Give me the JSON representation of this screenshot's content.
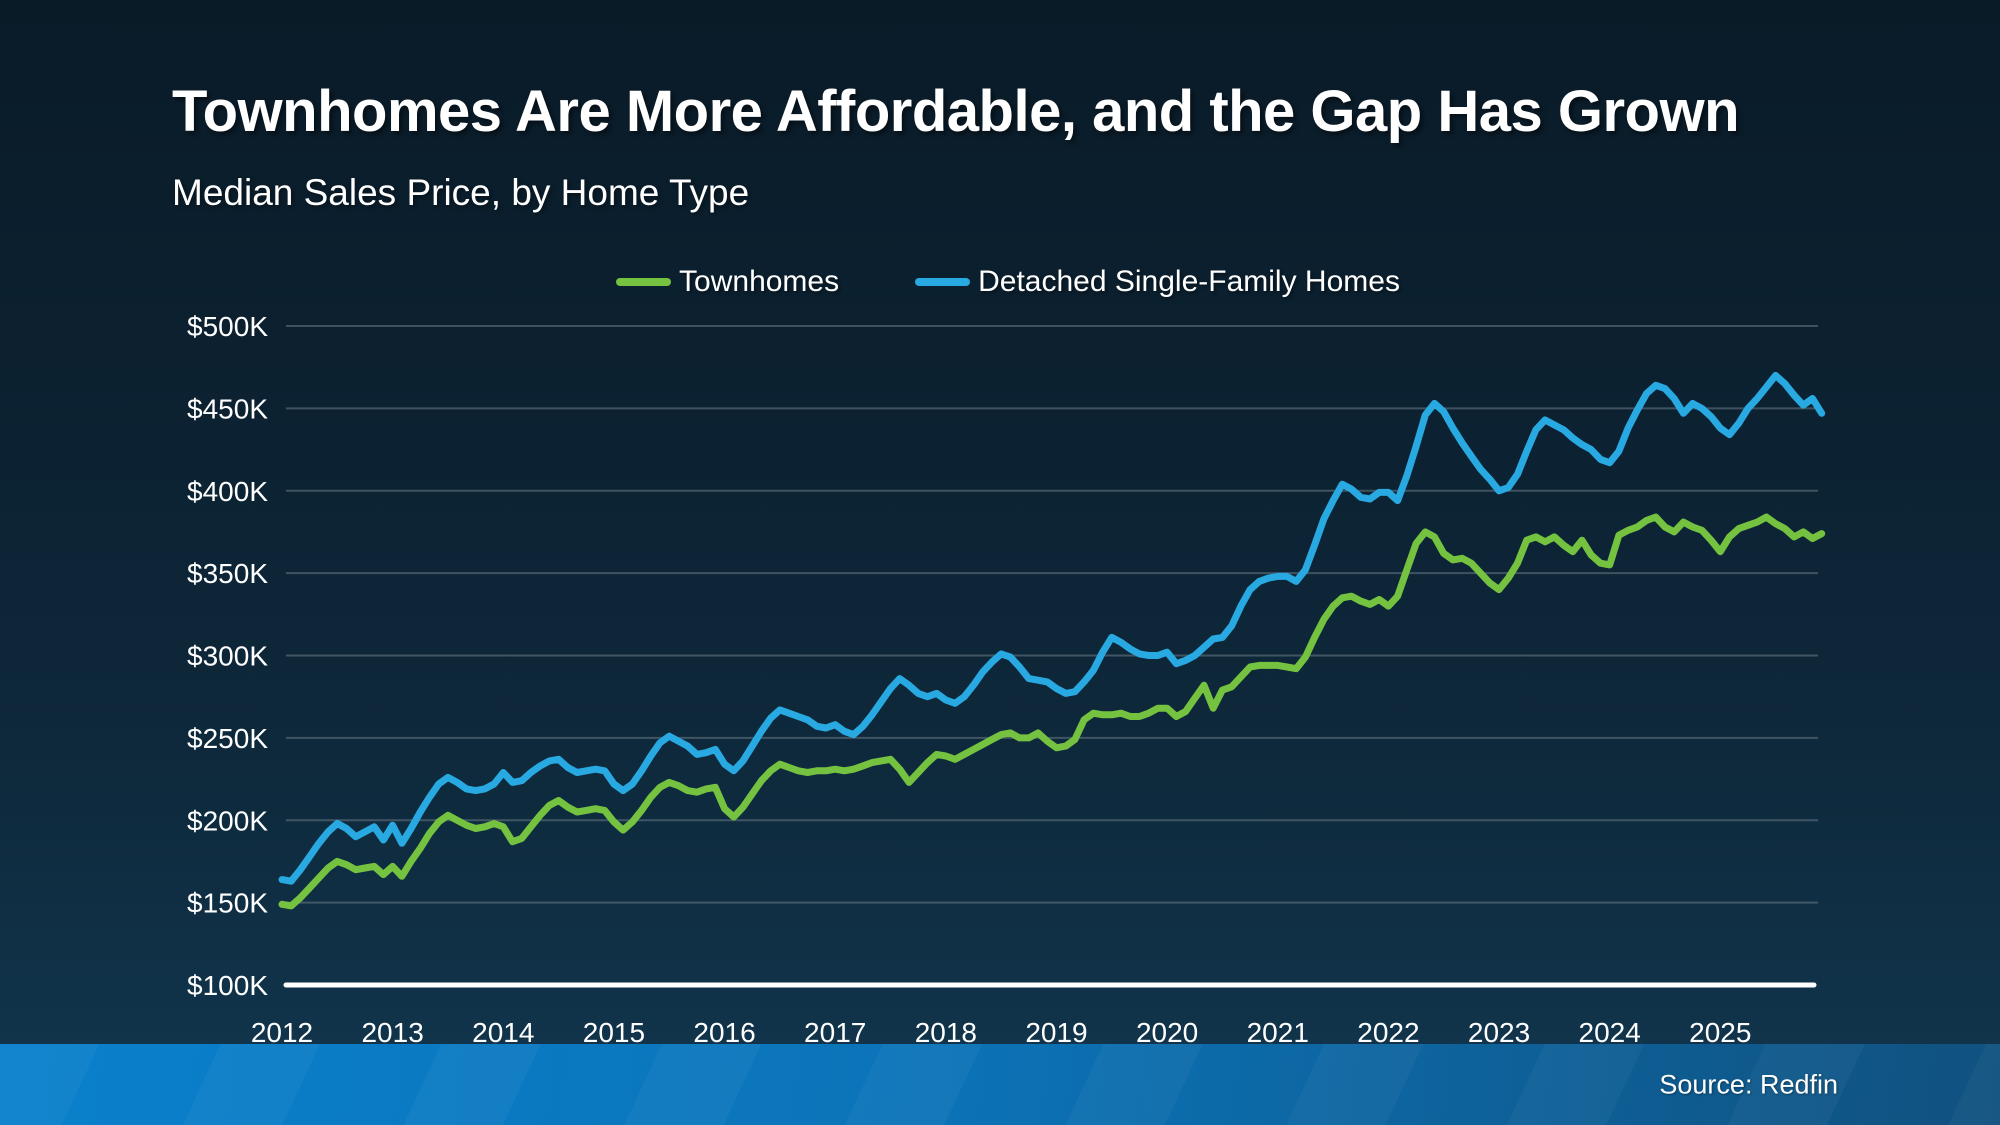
{
  "header": {
    "title": "Townhomes Are More Affordable, and the Gap Has Grown",
    "subtitle": "Median Sales Price, by Home Type"
  },
  "legend": {
    "items": [
      {
        "label": "Townhomes",
        "color": "#74C240"
      },
      {
        "label": "Detached Single-Family Homes",
        "color": "#29A9E1"
      }
    ]
  },
  "footer": {
    "source": "Source: Redfin"
  },
  "colors": {
    "background_top": "#0A1B28",
    "background_bottom": "#123750",
    "grid": "#6B7A85",
    "axis": "#FFFFFF",
    "text": "#FFFFFF",
    "footer_bar_left": "#0A80CC",
    "footer_bar_right": "#10517F",
    "townhomes": "#74C240",
    "detached": "#29A9E1"
  },
  "chart_data": {
    "type": "line",
    "title": "Townhomes Are More Affordable, and the Gap Has Grown",
    "subtitle": "Median Sales Price, by Home Type",
    "frequency": "monthly",
    "x_monthly_start": "2012-01",
    "x_monthly_end": "2025-12",
    "x_tick_labels": [
      "2012",
      "2013",
      "2014",
      "2015",
      "2016",
      "2017",
      "2018",
      "2019",
      "2020",
      "2021",
      "2022",
      "2023",
      "2024",
      "2025"
    ],
    "y_ticks": [
      {
        "label": "$500K",
        "value": 500
      },
      {
        "label": "$450K",
        "value": 450
      },
      {
        "label": "$400K",
        "value": 400
      },
      {
        "label": "$350K",
        "value": 350
      },
      {
        "label": "$300K",
        "value": 300
      },
      {
        "label": "$250K",
        "value": 250
      },
      {
        "label": "$200K",
        "value": 200
      },
      {
        "label": "$150K",
        "value": 150
      },
      {
        "label": "$100K",
        "value": 100
      }
    ],
    "ylim": [
      100,
      500
    ],
    "unit": "$K (USD thousands)",
    "grid": "horizontal",
    "legend_position": "top",
    "source": "Source: Redfin",
    "series": [
      {
        "name": "Townhomes",
        "color": "#74C240",
        "values": [
          149,
          148,
          153,
          159,
          165,
          171,
          175,
          173,
          170,
          171,
          172,
          167,
          172,
          166,
          175,
          183,
          192,
          199,
          203,
          200,
          197,
          195,
          196,
          198,
          196,
          187,
          189,
          196,
          203,
          209,
          212,
          208,
          205,
          206,
          207,
          206,
          199,
          194,
          199,
          206,
          214,
          220,
          223,
          221,
          218,
          217,
          219,
          220,
          207,
          202,
          208,
          216,
          224,
          230,
          234,
          232,
          230,
          229,
          230,
          230,
          231,
          230,
          231,
          233,
          235,
          236,
          237,
          231,
          223,
          229,
          235,
          240,
          239,
          237,
          240,
          243,
          246,
          249,
          252,
          253,
          250,
          250,
          253,
          248,
          244,
          245,
          249,
          261,
          265,
          264,
          264,
          265,
          263,
          263,
          265,
          268,
          268,
          263,
          266,
          274,
          282,
          268,
          279,
          281,
          287,
          293,
          294,
          294,
          294,
          293,
          292,
          299,
          311,
          322,
          330,
          335,
          336,
          333,
          331,
          334,
          330,
          336,
          352,
          368,
          375,
          372,
          362,
          358,
          359,
          356,
          350,
          344,
          340,
          347,
          356,
          370,
          372,
          369,
          372,
          367,
          363,
          370,
          361,
          356,
          355,
          373,
          376,
          378,
          382,
          384,
          378,
          375,
          381,
          378,
          376,
          370,
          363,
          372,
          377,
          379,
          381,
          384,
          380,
          377,
          372,
          375,
          371,
          374
        ]
      },
      {
        "name": "Detached Single-Family Homes",
        "color": "#29A9E1",
        "values": [
          164,
          163,
          170,
          178,
          186,
          193,
          198,
          195,
          190,
          193,
          196,
          188,
          197,
          186,
          195,
          205,
          214,
          222,
          226,
          223,
          219,
          218,
          219,
          222,
          229,
          223,
          224,
          229,
          233,
          236,
          237,
          232,
          229,
          230,
          231,
          230,
          222,
          218,
          222,
          230,
          239,
          247,
          251,
          248,
          245,
          240,
          241,
          243,
          234,
          230,
          236,
          245,
          254,
          262,
          267,
          265,
          263,
          261,
          257,
          256,
          258,
          254,
          252,
          257,
          264,
          272,
          280,
          286,
          282,
          277,
          275,
          277,
          273,
          271,
          275,
          282,
          290,
          296,
          301,
          299,
          293,
          286,
          285,
          284,
          280,
          277,
          278,
          284,
          291,
          302,
          311,
          308,
          304,
          301,
          300,
          300,
          302,
          295,
          297,
          300,
          305,
          310,
          311,
          318,
          330,
          340,
          345,
          347,
          348,
          348,
          345,
          352,
          367,
          383,
          394,
          404,
          401,
          396,
          395,
          399,
          399,
          394,
          409,
          427,
          446,
          453,
          448,
          438,
          429,
          421,
          413,
          407,
          400,
          402,
          410,
          424,
          437,
          443,
          440,
          437,
          432,
          428,
          425,
          419,
          417,
          424,
          438,
          449,
          459,
          464,
          462,
          456,
          447,
          453,
          450,
          445,
          438,
          434,
          441,
          450,
          456,
          463,
          470,
          465,
          458,
          452,
          456,
          447
        ]
      }
    ]
  }
}
